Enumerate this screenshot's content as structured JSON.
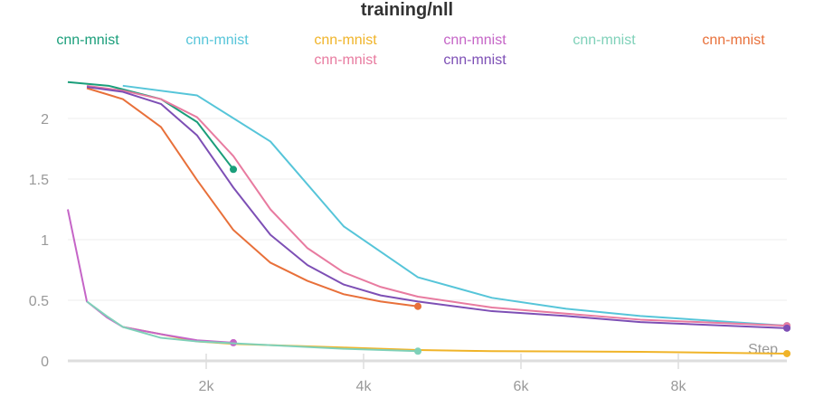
{
  "chart_data": {
    "type": "line",
    "title": "training/nll",
    "xlabel": "Step",
    "ylabel": "",
    "xlim": [
      241,
      9380
    ],
    "ylim": [
      0,
      2.35
    ],
    "xticks": [
      {
        "v": 2000,
        "label": "2k"
      },
      {
        "v": 4000,
        "label": "4k"
      },
      {
        "v": 6000,
        "label": "6k"
      },
      {
        "v": 8000,
        "label": "8k"
      }
    ],
    "yticks": [
      {
        "v": 0,
        "label": "0"
      },
      {
        "v": 0.5,
        "label": "0.5"
      },
      {
        "v": 1,
        "label": "1"
      },
      {
        "v": 1.5,
        "label": "1.5"
      },
      {
        "v": 2,
        "label": "2"
      }
    ],
    "grid": true,
    "legend_placement": "top",
    "series": [
      {
        "name": "cnn-mnist",
        "color": "#1a9e7a",
        "x": [
          241,
          760,
          1425,
          1885,
          2345
        ],
        "y": [
          2.3,
          2.27,
          2.16,
          1.97,
          1.58
        ]
      },
      {
        "name": "cnn-mnist",
        "color": "#56c5d9",
        "x": [
          940,
          1885,
          2816,
          3747,
          4690,
          5632,
          6575,
          7517,
          9380
        ],
        "y": [
          2.27,
          2.19,
          1.81,
          1.11,
          0.69,
          0.52,
          0.43,
          0.37,
          0.29
        ]
      },
      {
        "name": "cnn-mnist",
        "color": "#f0b429",
        "x": [
          940,
          1425,
          1885,
          2345,
          3747,
          4690,
          5632,
          7517,
          9380
        ],
        "y": [
          0.28,
          0.22,
          0.16,
          0.14,
          0.11,
          0.09,
          0.08,
          0.075,
          0.06
        ]
      },
      {
        "name": "cnn-mnist",
        "color": "#c565c7",
        "x": [
          241,
          483,
          735,
          940,
          1425,
          1885,
          2345
        ],
        "y": [
          1.25,
          0.49,
          0.36,
          0.28,
          0.22,
          0.17,
          0.15
        ]
      },
      {
        "name": "cnn-mnist",
        "color": "#7fd1b9",
        "x": [
          483,
          735,
          940,
          1425,
          1885,
          2816,
          3747,
          4690
        ],
        "y": [
          0.49,
          0.37,
          0.28,
          0.19,
          0.16,
          0.13,
          0.1,
          0.08
        ]
      },
      {
        "name": "cnn-mnist",
        "color": "#e8703a",
        "x": [
          483,
          940,
          1425,
          1885,
          2345,
          2816,
          3287,
          3747,
          4218,
          4690
        ],
        "y": [
          2.25,
          2.16,
          1.93,
          1.49,
          1.08,
          0.81,
          0.66,
          0.55,
          0.49,
          0.45
        ]
      },
      {
        "name": "cnn-mnist",
        "color": "#e87ba0",
        "x": [
          483,
          940,
          1425,
          1885,
          2345,
          2816,
          3287,
          3747,
          4218,
          4690,
          5632,
          6575,
          7517,
          9380
        ],
        "y": [
          2.27,
          2.23,
          2.16,
          2.01,
          1.69,
          1.25,
          0.93,
          0.73,
          0.61,
          0.53,
          0.44,
          0.39,
          0.34,
          0.29
        ]
      },
      {
        "name": "cnn-mnist",
        "color": "#7d4fb5",
        "x": [
          483,
          940,
          1425,
          1885,
          2345,
          2816,
          3287,
          3747,
          4218,
          4690,
          5632,
          6575,
          7517,
          9380
        ],
        "y": [
          2.26,
          2.22,
          2.12,
          1.86,
          1.43,
          1.04,
          0.79,
          0.63,
          0.54,
          0.49,
          0.41,
          0.37,
          0.32,
          0.27
        ]
      }
    ]
  }
}
